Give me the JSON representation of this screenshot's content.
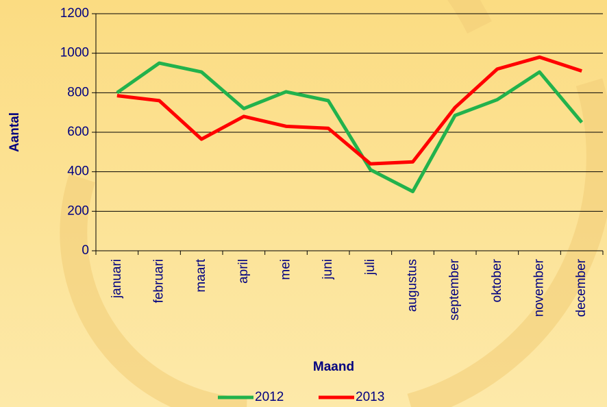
{
  "chart_data": {
    "type": "line",
    "x_label": "Maand",
    "y_label": "Aantal",
    "categories": [
      "januari",
      "februari",
      "maart",
      "april",
      "mei",
      "juni",
      "juli",
      "augustus",
      "september",
      "oktober",
      "november",
      "december"
    ],
    "series": [
      {
        "name": "2012",
        "color": "#22b24c",
        "values": [
          800,
          950,
          905,
          720,
          805,
          760,
          410,
          300,
          685,
          765,
          905,
          650
        ]
      },
      {
        "name": "2013",
        "color": "#ff0000",
        "values": [
          785,
          760,
          565,
          680,
          630,
          620,
          440,
          450,
          725,
          920,
          980,
          910
        ]
      }
    ],
    "ylim": [
      0,
      1200
    ],
    "yticks": [
      0,
      200,
      400,
      600,
      800,
      1000,
      1200
    ],
    "grid": true,
    "legend": "bottom"
  }
}
